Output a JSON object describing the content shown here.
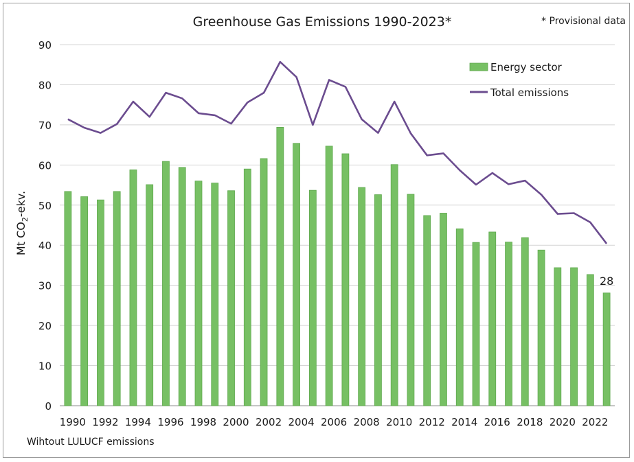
{
  "chart_data": {
    "type": "bar",
    "title": "Greenhouse Gas Emissions 1990-2023*",
    "note": "* Provisional data",
    "footnote": "Wihtout LULUCF emissions",
    "ylabel_main": "Mt CO",
    "ylabel_sub": "2",
    "ylabel_tail": "-ekv.",
    "ylim": [
      0,
      90
    ],
    "yticks": [
      0,
      10,
      20,
      30,
      40,
      50,
      60,
      70,
      80,
      90
    ],
    "grid": true,
    "legend_position": "top-right",
    "years": [
      1990,
      1991,
      1992,
      1993,
      1994,
      1995,
      1996,
      1997,
      1998,
      1999,
      2000,
      2001,
      2002,
      2003,
      2004,
      2005,
      2006,
      2007,
      2008,
      2009,
      2010,
      2011,
      2012,
      2013,
      2014,
      2015,
      2016,
      2017,
      2018,
      2019,
      2020,
      2021,
      2022,
      2023
    ],
    "x_tick_labels": [
      "1990",
      "1992",
      "1994",
      "1996",
      "1998",
      "2000",
      "2002",
      "2004",
      "2006",
      "2008",
      "2010",
      "2012",
      "2014",
      "2016",
      "2018",
      "2020",
      "2022"
    ],
    "series": [
      {
        "name": "Energy sector",
        "kind": "bar",
        "color": "#77c064",
        "edge": "#5fa84e",
        "values": [
          53.4,
          52.1,
          51.3,
          53.4,
          58.8,
          55.1,
          60.9,
          59.4,
          56.0,
          55.5,
          53.6,
          59.0,
          61.6,
          69.4,
          65.4,
          53.7,
          64.7,
          62.8,
          54.4,
          52.6,
          60.1,
          52.7,
          47.4,
          48.0,
          44.1,
          40.7,
          43.3,
          40.8,
          41.9,
          38.8,
          34.4,
          34.4,
          32.7,
          28.1
        ]
      },
      {
        "name": "Total emissions",
        "kind": "line",
        "color": "#6b4c8f",
        "values": [
          71.4,
          69.3,
          68.0,
          70.2,
          75.8,
          72.0,
          78.0,
          76.6,
          72.9,
          72.4,
          70.3,
          75.6,
          78.0,
          85.7,
          81.9,
          70.0,
          81.2,
          79.5,
          71.4,
          68.0,
          75.8,
          67.9,
          62.4,
          62.9,
          58.7,
          55.1,
          58.0,
          55.2,
          56.1,
          52.6,
          47.8,
          48.0,
          45.7,
          40.4
        ]
      }
    ],
    "data_label": {
      "year": 2023,
      "text": "28"
    }
  }
}
